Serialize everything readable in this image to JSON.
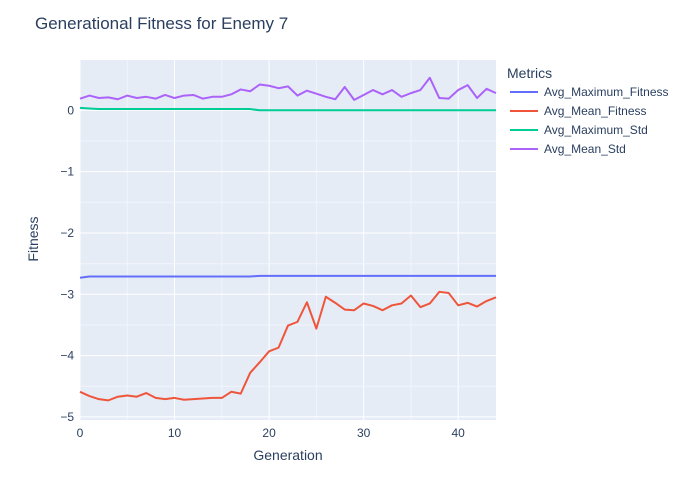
{
  "chart_data": {
    "type": "line",
    "title": "Generational Fitness for Enemy 7",
    "xlabel": "Generation",
    "ylabel": "Fitness",
    "xlim": [
      0,
      44
    ],
    "ylim": [
      -5.05,
      0.82
    ],
    "xticks": [
      0,
      10,
      20,
      30,
      40
    ],
    "yticks": [
      0,
      -1,
      -2,
      -3,
      -4,
      -5
    ],
    "ytick_labels": [
      "0",
      "−1",
      "−2",
      "−3",
      "−4",
      "−5"
    ],
    "grid": true,
    "legend": {
      "title": "Metrics",
      "placement": "right"
    },
    "x": [
      0,
      1,
      2,
      3,
      4,
      5,
      6,
      7,
      8,
      9,
      10,
      11,
      12,
      13,
      14,
      15,
      16,
      17,
      18,
      19,
      20,
      21,
      22,
      23,
      24,
      25,
      26,
      27,
      28,
      29,
      30,
      31,
      32,
      33,
      34,
      35,
      36,
      37,
      38,
      39,
      40,
      41,
      42,
      43,
      44
    ],
    "series": [
      {
        "name": "Avg_Maximum_Fitness",
        "color": "#636efa",
        "values": [
          -2.73,
          -2.71,
          -2.71,
          -2.71,
          -2.71,
          -2.71,
          -2.71,
          -2.71,
          -2.71,
          -2.71,
          -2.71,
          -2.71,
          -2.71,
          -2.71,
          -2.71,
          -2.71,
          -2.71,
          -2.71,
          -2.71,
          -2.7,
          -2.7,
          -2.7,
          -2.7,
          -2.7,
          -2.7,
          -2.7,
          -2.7,
          -2.7,
          -2.7,
          -2.7,
          -2.7,
          -2.7,
          -2.7,
          -2.7,
          -2.7,
          -2.7,
          -2.7,
          -2.7,
          -2.7,
          -2.7,
          -2.7,
          -2.7,
          -2.7,
          -2.7,
          -2.7
        ]
      },
      {
        "name": "Avg_Mean_Fitness",
        "color": "#ef553b",
        "values": [
          -4.59,
          -4.66,
          -4.71,
          -4.73,
          -4.67,
          -4.65,
          -4.67,
          -4.61,
          -4.69,
          -4.71,
          -4.69,
          -4.72,
          -4.71,
          -4.7,
          -4.69,
          -4.69,
          -4.59,
          -4.62,
          -4.28,
          -4.11,
          -3.93,
          -3.87,
          -3.51,
          -3.45,
          -3.13,
          -3.56,
          -3.04,
          -3.14,
          -3.25,
          -3.26,
          -3.15,
          -3.19,
          -3.26,
          -3.18,
          -3.15,
          -3.02,
          -3.21,
          -3.15,
          -2.96,
          -2.98,
          -3.18,
          -3.14,
          -3.2,
          -3.11,
          -3.05
        ]
      },
      {
        "name": "Avg_Maximum_Std",
        "color": "#00cc96",
        "values": [
          0.04,
          0.03,
          0.02,
          0.02,
          0.02,
          0.02,
          0.02,
          0.02,
          0.02,
          0.02,
          0.02,
          0.02,
          0.02,
          0.02,
          0.02,
          0.02,
          0.02,
          0.02,
          0.02,
          0.0,
          0.0,
          0.0,
          0.0,
          0.0,
          0.0,
          0.0,
          0.0,
          0.0,
          0.0,
          0.0,
          0.0,
          0.0,
          0.0,
          0.0,
          0.0,
          0.0,
          0.0,
          0.0,
          0.0,
          0.0,
          0.0,
          0.0,
          0.0,
          0.0,
          0.0
        ]
      },
      {
        "name": "Avg_Mean_Std",
        "color": "#ab63fa",
        "values": [
          0.19,
          0.24,
          0.2,
          0.21,
          0.18,
          0.24,
          0.2,
          0.22,
          0.19,
          0.25,
          0.2,
          0.24,
          0.25,
          0.19,
          0.22,
          0.22,
          0.26,
          0.34,
          0.31,
          0.42,
          0.4,
          0.36,
          0.39,
          0.24,
          0.32,
          0.27,
          0.22,
          0.18,
          0.38,
          0.17,
          0.25,
          0.33,
          0.26,
          0.33,
          0.22,
          0.28,
          0.33,
          0.53,
          0.2,
          0.19,
          0.33,
          0.41,
          0.2,
          0.35,
          0.28
        ]
      }
    ]
  }
}
